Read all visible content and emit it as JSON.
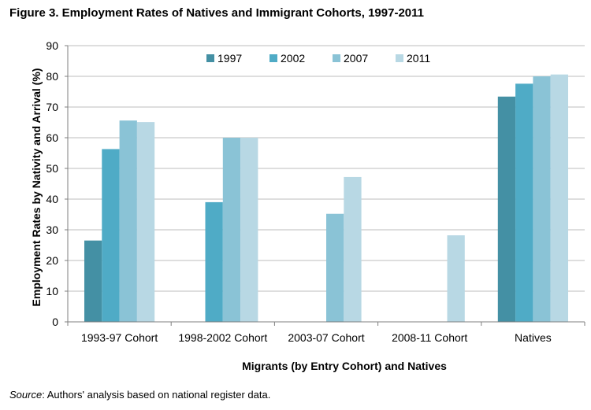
{
  "figure": {
    "title": "Figure 3. Employment Rates of Natives and Immigrant Cohorts, 1997-2011",
    "source_label": "Source",
    "source_text": ": Authors' analysis based on national register data."
  },
  "chart_data": {
    "type": "bar",
    "title": "Figure 3. Employment Rates of Natives and Immigrant Cohorts, 1997-2011",
    "xlabel": "Migrants (by Entry Cohort) and Natives",
    "ylabel": "Employment Rates by Nativity and Arrival (%)",
    "ylim": [
      0,
      90
    ],
    "yticks": [
      0,
      10,
      20,
      30,
      40,
      50,
      60,
      70,
      80,
      90
    ],
    "grid": true,
    "legend_position": "top-center",
    "categories": [
      "1993-97 Cohort",
      "1998-2002 Cohort",
      "2003-07 Cohort",
      "2008-11 Cohort",
      "Natives"
    ],
    "series": [
      {
        "name": "1997",
        "color": "#4490a4",
        "values": [
          26.5,
          null,
          null,
          null,
          73.4
        ]
      },
      {
        "name": "2002",
        "color": "#4fabc6",
        "values": [
          56.3,
          39.0,
          null,
          null,
          77.6
        ]
      },
      {
        "name": "2007",
        "color": "#8ac3d6",
        "values": [
          65.6,
          60.0,
          35.2,
          null,
          80.0
        ]
      },
      {
        "name": "2011",
        "color": "#b8d8e4",
        "values": [
          65.1,
          60.0,
          47.2,
          28.2,
          80.6
        ]
      }
    ]
  }
}
